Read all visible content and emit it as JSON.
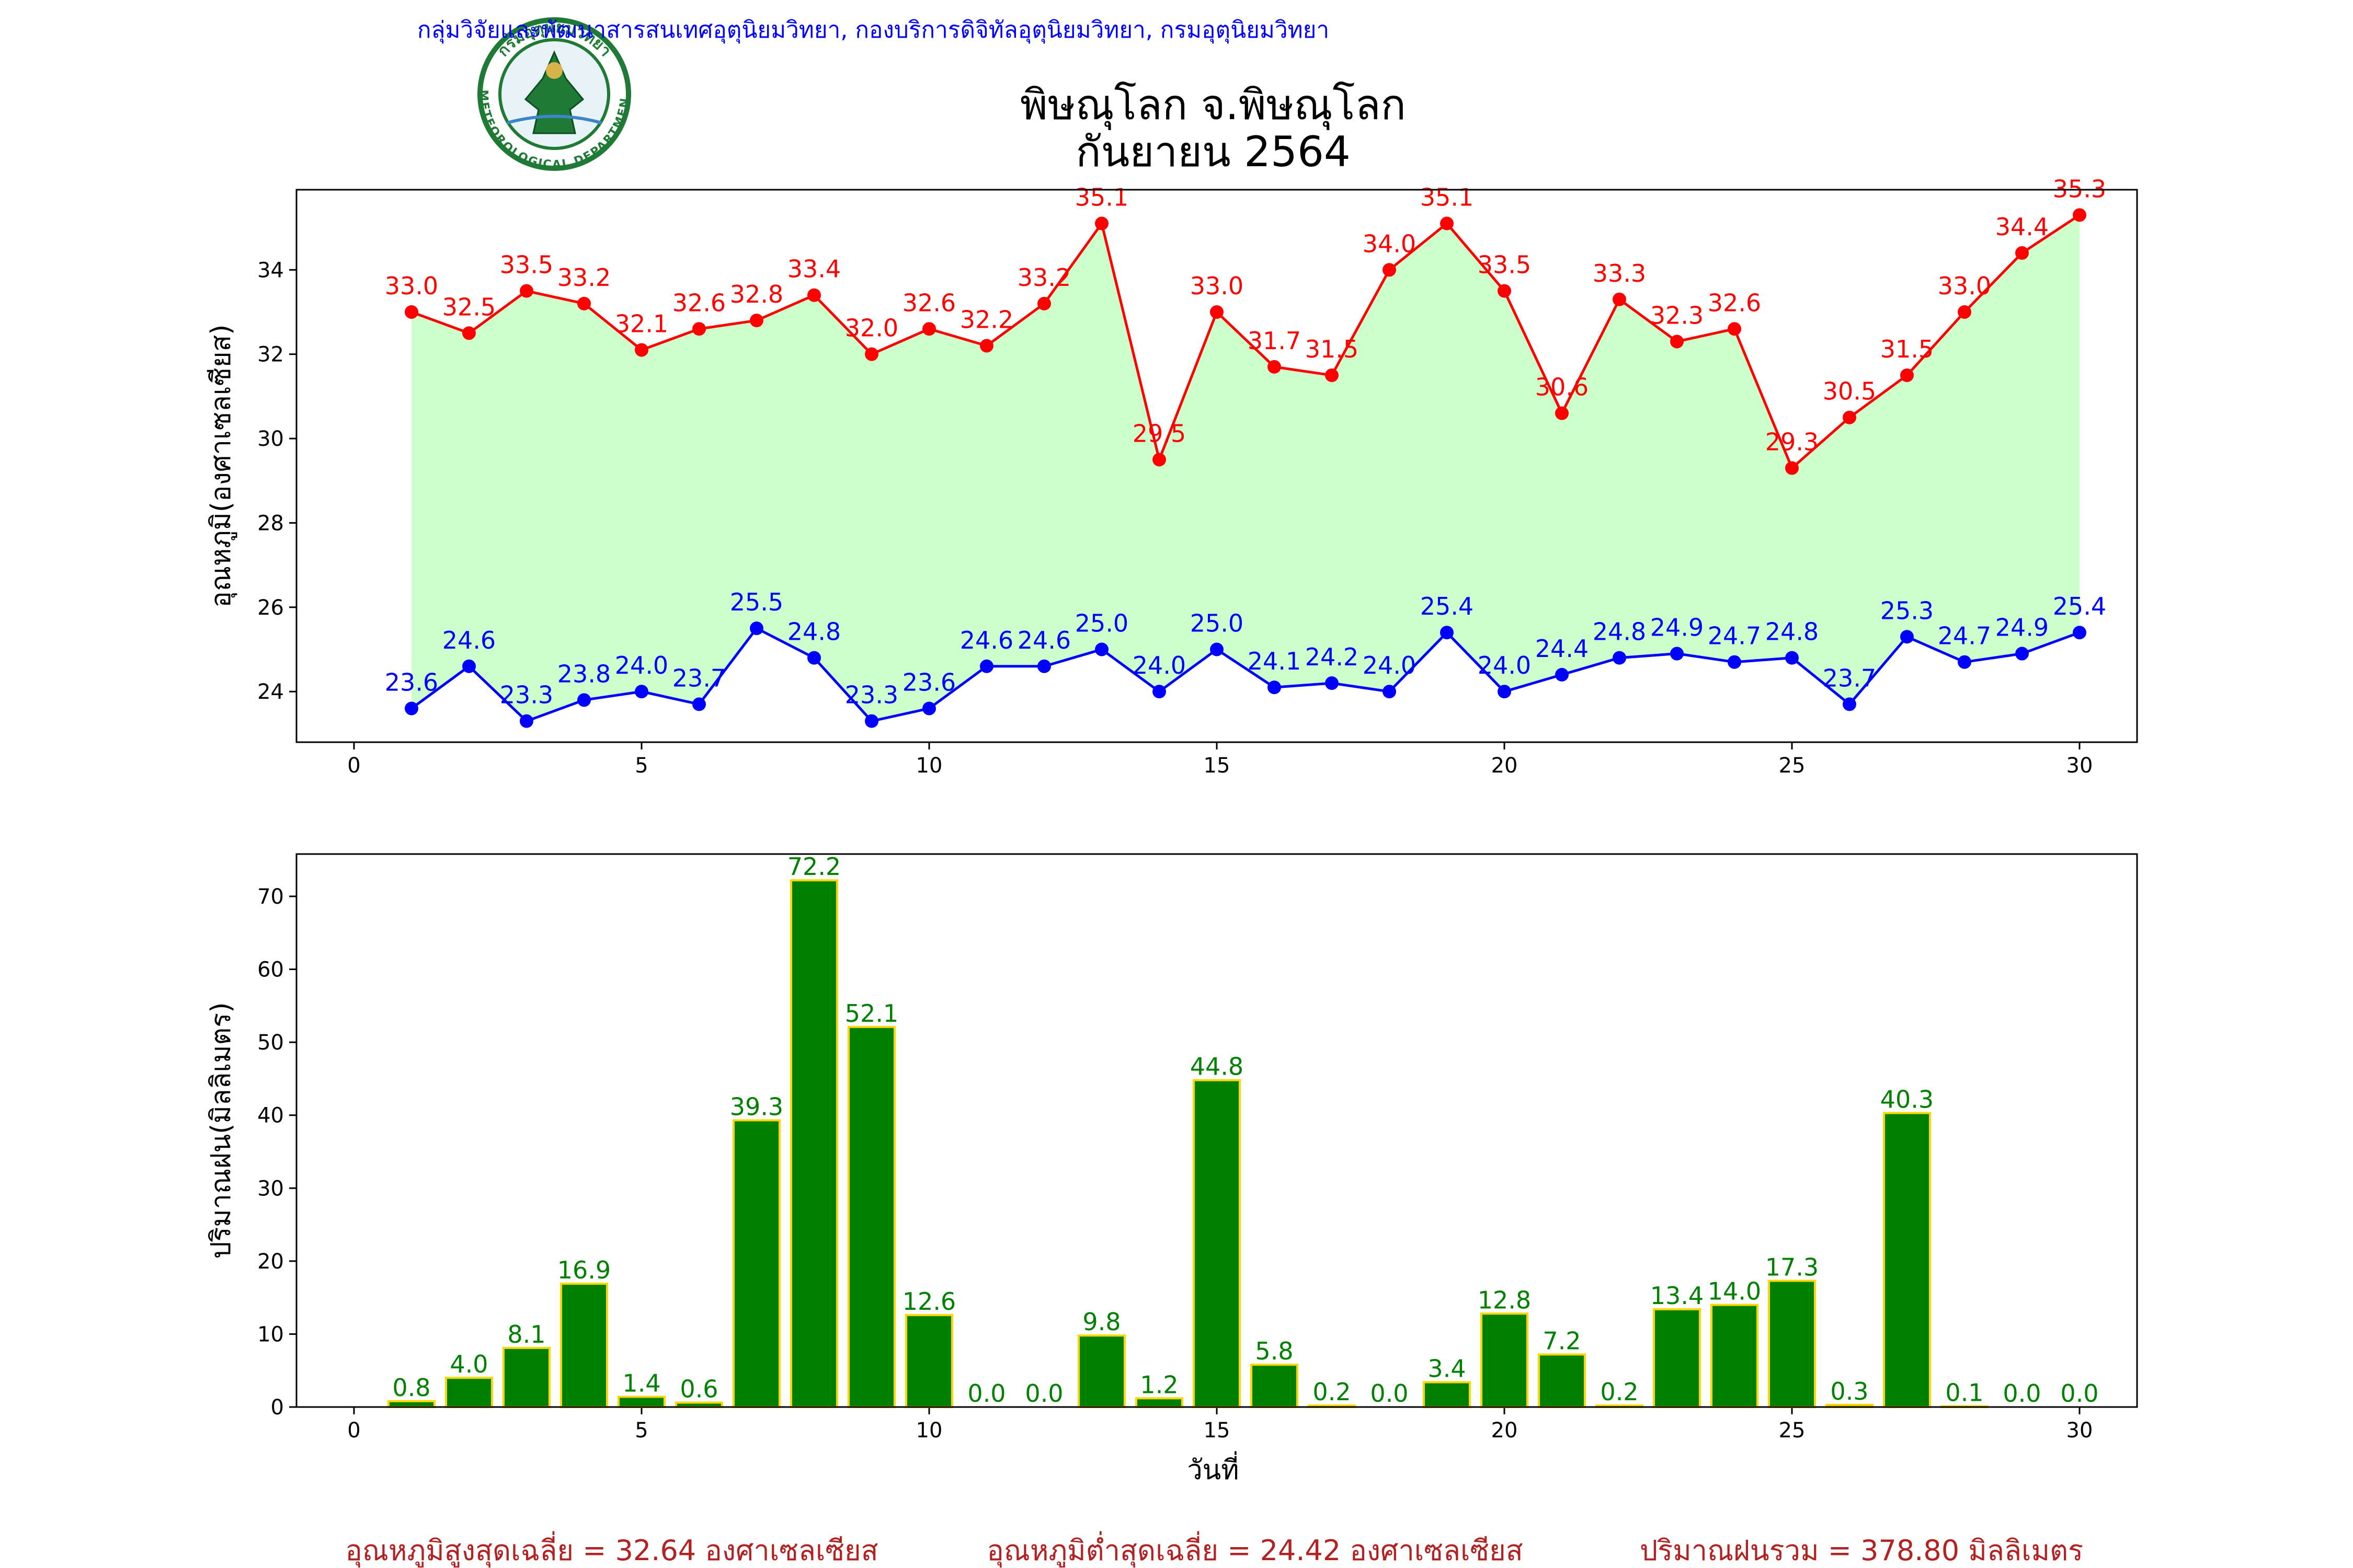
{
  "header": {
    "agency": "กลุ่มวิจัยและพัฒนาสารสนเทศอุตุนิยมวิทยา, กองบริการดิจิทัลอุตุนิยมวิทยา, กรมอุตุนิยมวิทยา",
    "title_line1": "พิษณุโลก จ.พิษณุโลก",
    "title_line2": "กันยายน 2564",
    "logo_text": "METEOROLOGICAL DEPARTMENT",
    "logo_top_text": "กรมอุตุนิยมวิทยา"
  },
  "colors": {
    "tmax": "#ff0000",
    "tmin": "#0000ff",
    "fill": "#ccffcc",
    "bar": "#008000",
    "bar_edge": "#ffd700",
    "bar_label": "#008000",
    "summary": "#b22222",
    "agency": "#0000ff",
    "logo_green": "#1e7a35"
  },
  "summary": {
    "tmax_avg": "อุณหภูมิสูงสุดเฉลี่ย = 32.64 องศาเซลเซียส",
    "tmin_avg": "อุณหภูมิต่ำสุดเฉลี่ย = 24.42 องศาเซลเซียส",
    "rain_total": "ปริมาณฝนรวม = 378.80 มิลลิเมตร"
  },
  "chart_data": [
    {
      "type": "line",
      "ylabel": "อุณหภูมิ(องศาเซลเซียส)",
      "xlim": [
        -1,
        31
      ],
      "ylim": [
        22.8,
        35.9
      ],
      "xticks": [
        0,
        5,
        10,
        15,
        20,
        25,
        30
      ],
      "yticks": [
        24,
        26,
        28,
        30,
        32,
        34
      ],
      "x": [
        1,
        2,
        3,
        4,
        5,
        6,
        7,
        8,
        9,
        10,
        11,
        12,
        13,
        14,
        15,
        16,
        17,
        18,
        19,
        20,
        21,
        22,
        23,
        24,
        25,
        26,
        27,
        28,
        29,
        30
      ],
      "series": [
        {
          "key": "tmax",
          "values": [
            33.0,
            32.5,
            33.5,
            33.2,
            32.1,
            32.6,
            32.8,
            33.4,
            32.0,
            32.6,
            32.2,
            33.2,
            35.1,
            29.5,
            33.0,
            31.7,
            31.5,
            34.0,
            35.1,
            33.5,
            30.6,
            33.3,
            32.3,
            32.6,
            29.3,
            30.5,
            31.5,
            33.0,
            34.4,
            35.3
          ]
        },
        {
          "key": "tmin",
          "values": [
            23.6,
            24.6,
            23.3,
            23.8,
            24.0,
            23.7,
            25.5,
            24.8,
            23.3,
            23.6,
            24.6,
            24.6,
            25.0,
            24.0,
            25.0,
            24.1,
            24.2,
            24.0,
            25.4,
            24.0,
            24.4,
            24.8,
            24.9,
            24.7,
            24.8,
            23.7,
            25.3,
            24.7,
            24.9,
            25.4
          ]
        }
      ]
    },
    {
      "type": "bar",
      "ylabel": "ปริมาณฝน(มิลลิเมตร)",
      "xlabel": "วันที่",
      "xlim": [
        -1,
        31
      ],
      "ylim": [
        0,
        75.8
      ],
      "xticks": [
        0,
        5,
        10,
        15,
        20,
        25,
        30
      ],
      "yticks": [
        0,
        10,
        20,
        30,
        40,
        50,
        60,
        70
      ],
      "x": [
        1,
        2,
        3,
        4,
        5,
        6,
        7,
        8,
        9,
        10,
        11,
        12,
        13,
        14,
        15,
        16,
        17,
        18,
        19,
        20,
        21,
        22,
        23,
        24,
        25,
        26,
        27,
        28,
        29,
        30
      ],
      "values": [
        0.8,
        4.0,
        8.1,
        16.9,
        1.4,
        0.6,
        39.3,
        72.2,
        52.1,
        12.6,
        0.0,
        0.0,
        9.8,
        1.2,
        44.8,
        5.8,
        0.2,
        0.0,
        3.4,
        12.8,
        7.2,
        0.2,
        13.4,
        14.0,
        17.3,
        0.3,
        40.3,
        0.1,
        0.0,
        0.0
      ]
    }
  ]
}
